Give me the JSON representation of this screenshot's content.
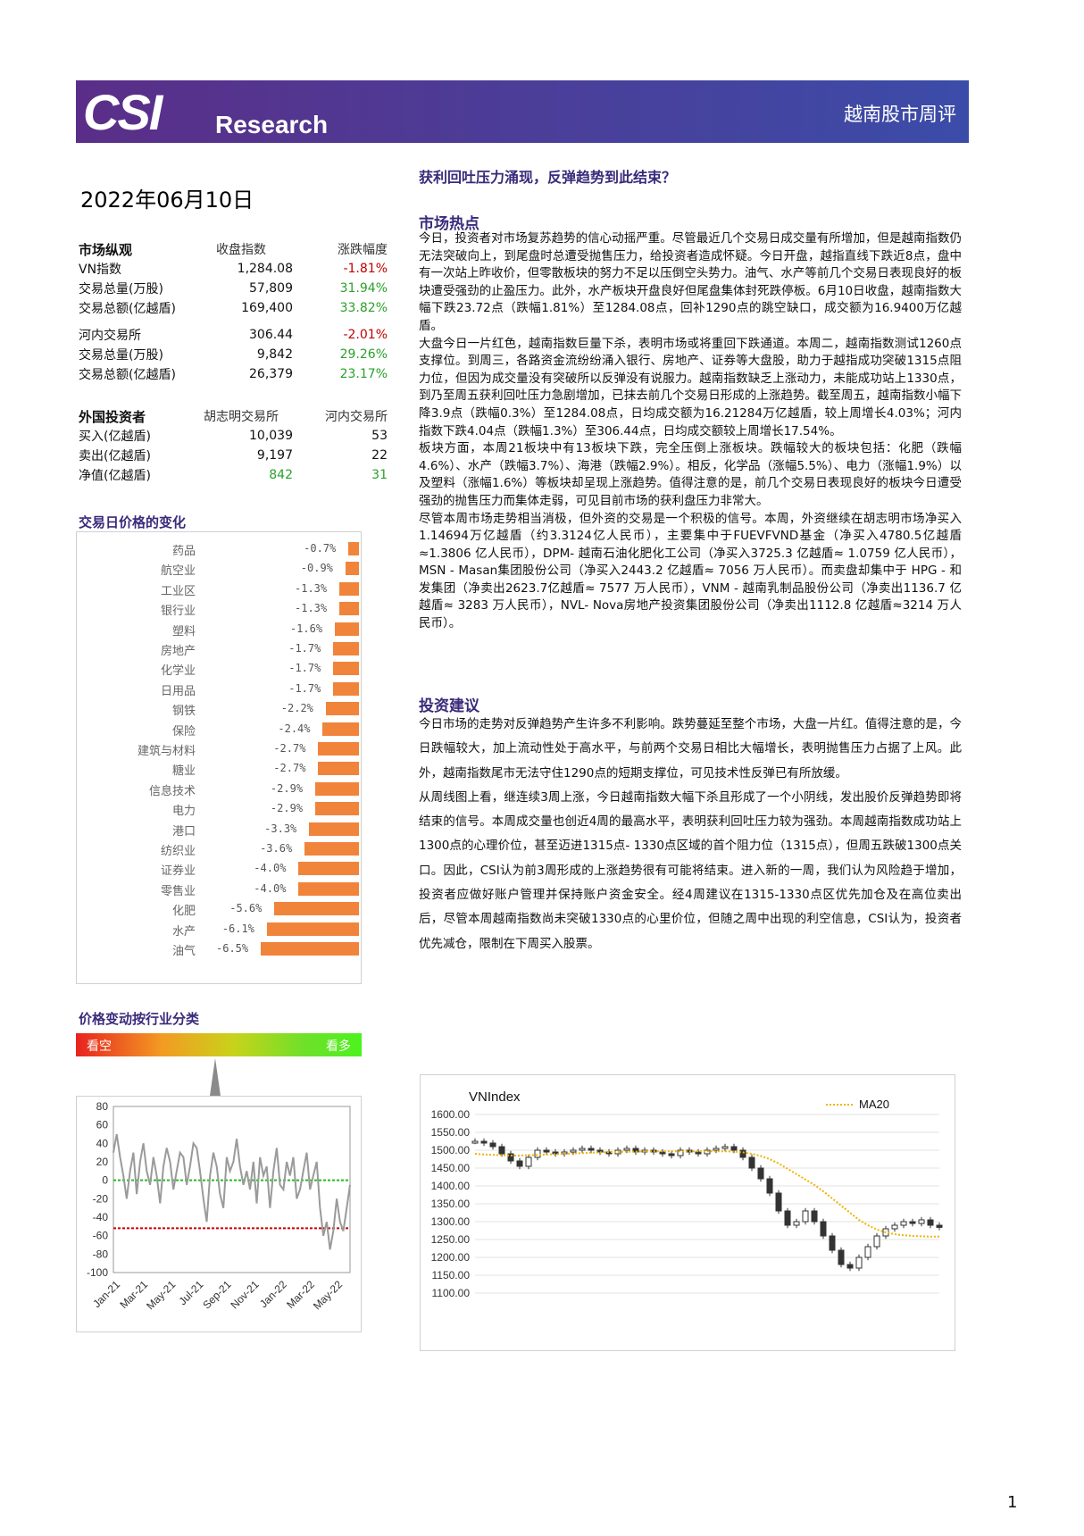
{
  "header": {
    "logo_mark": "CSI",
    "logo_word": "Research",
    "title": "越南股市周评",
    "brand_color": "#4b3a98"
  },
  "report_date": "2022年06月10日",
  "market_overview": {
    "heading": "市场纵观",
    "col1": "收盘指数",
    "col2": "涨跌幅度",
    "rows": [
      {
        "label": "VN指数",
        "v1": "1,284.08",
        "v2": "-1.81%"
      },
      {
        "label": "交易总量(万股)",
        "v1": "57,809",
        "v2": "31.94%"
      },
      {
        "label": "交易总额(亿越盾)",
        "v1": "169,400",
        "v2": "33.82%"
      },
      {
        "label": "河内交易所",
        "v1": "306.44",
        "v2": "-2.01%"
      },
      {
        "label": "交易总量(万股)",
        "v1": "9,842",
        "v2": "29.26%"
      },
      {
        "label": "交易总额(亿越盾)",
        "v1": "26,379",
        "v2": "23.17%"
      }
    ]
  },
  "foreign_investors": {
    "heading": "外国投资者",
    "col1": "胡志明交易所",
    "col2": "河内交易所",
    "rows": [
      {
        "label": "买入(亿越盾)",
        "v1": "10,039",
        "v2": "53"
      },
      {
        "label": "卖出(亿越盾)",
        "v1": "9,197",
        "v2": "22"
      },
      {
        "label": "净值(亿越盾)",
        "v1": "842",
        "v2": "31"
      }
    ]
  },
  "sector_chart": {
    "heading": "交易日价格的变化",
    "bar_color": "#f0843a",
    "items": [
      {
        "name": "药品",
        "label": "-0.7%",
        "value": -0.7
      },
      {
        "name": "航空业",
        "label": "-0.9%",
        "value": -0.9
      },
      {
        "name": "工业区",
        "label": "-1.3%",
        "value": -1.3
      },
      {
        "name": "银行业",
        "label": "-1.3%",
        "value": -1.3
      },
      {
        "name": "塑料",
        "label": "-1.6%",
        "value": -1.6
      },
      {
        "name": "房地产",
        "label": "-1.7%",
        "value": -1.7
      },
      {
        "name": "化学业",
        "label": "-1.7%",
        "value": -1.7
      },
      {
        "name": "日用品",
        "label": "-1.7%",
        "value": -1.7
      },
      {
        "name": "钢铁",
        "label": "-2.2%",
        "value": -2.2
      },
      {
        "name": "保险",
        "label": "-2.4%",
        "value": -2.4
      },
      {
        "name": "建筑与材料",
        "label": "-2.7%",
        "value": -2.7
      },
      {
        "name": "糖业",
        "label": "-2.7%",
        "value": -2.7
      },
      {
        "name": "信息技术",
        "label": "-2.9%",
        "value": -2.9
      },
      {
        "name": "电力",
        "label": "-2.9%",
        "value": -2.9
      },
      {
        "name": "港口",
        "label": "-3.3%",
        "value": -3.3
      },
      {
        "name": "纺织业",
        "label": "-3.6%",
        "value": -3.6
      },
      {
        "name": "证券业",
        "label": "-4.0%",
        "value": -4.0
      },
      {
        "name": "零售业",
        "label": "-4.0%",
        "value": -4.0
      },
      {
        "name": "化肥",
        "label": "-5.6%",
        "value": -5.6
      },
      {
        "name": "水产",
        "label": "-6.1%",
        "value": -6.1
      },
      {
        "name": "油气",
        "label": "-6.5%",
        "value": -6.5
      }
    ]
  },
  "sentiment": {
    "heading": "价格变动按行业分类",
    "bear": "看空",
    "bull": "看多"
  },
  "chart_data": [
    {
      "type": "line",
      "title": "",
      "ylim": [
        -100,
        80
      ],
      "yticks": [
        "80",
        "60",
        "40",
        "20",
        "0",
        "-20",
        "-40",
        "-60",
        "-80",
        "-100"
      ],
      "xticks": [
        "Jan-21",
        "Mar-21",
        "May-21",
        "Jul-21",
        "Sep-21",
        "Nov-21",
        "Jan-22",
        "Mar-22",
        "May-22"
      ],
      "reference_lines": [
        {
          "value": 0,
          "color": "#22bb22"
        },
        {
          "value": -52,
          "color": "#cc0000"
        }
      ],
      "series": [
        {
          "values": [
            30,
            50,
            25,
            5,
            -20,
            10,
            30,
            -15,
            20,
            40,
            10,
            -5,
            25,
            5,
            -25,
            15,
            35,
            20,
            -10,
            10,
            30,
            25,
            -5,
            15,
            40,
            35,
            10,
            -20,
            -45,
            5,
            30,
            15,
            -15,
            -30,
            25,
            10,
            20,
            45,
            15,
            -5,
            10,
            -10,
            20,
            -25,
            25,
            5,
            15,
            -30,
            10,
            35,
            -5,
            -10,
            20,
            5,
            25,
            -20,
            -10,
            10,
            30,
            -10,
            5,
            20,
            -30,
            -60,
            -45,
            -75,
            -55,
            -20,
            -45,
            -55,
            -30,
            -5
          ]
        }
      ]
    },
    {
      "type": "line",
      "title": "VNIndex",
      "legend": [
        "MA20"
      ],
      "ylim": [
        1100,
        1600
      ],
      "yticks": [
        "1600.00",
        "1550.00",
        "1500.00",
        "1450.00",
        "1400.00",
        "1350.00",
        "1300.00",
        "1250.00",
        "1200.00",
        "1150.00",
        "1100.00"
      ],
      "series": [
        {
          "name": "VNIndex",
          "values": [
            1525,
            1520,
            1510,
            1490,
            1470,
            1455,
            1480,
            1500,
            1495,
            1490,
            1495,
            1500,
            1505,
            1500,
            1495,
            1490,
            1500,
            1505,
            1495,
            1500,
            1495,
            1490,
            1485,
            1500,
            1495,
            1490,
            1500,
            1505,
            1510,
            1500,
            1480,
            1450,
            1420,
            1380,
            1330,
            1290,
            1300,
            1330,
            1300,
            1260,
            1220,
            1180,
            1170,
            1200,
            1230,
            1260,
            1280,
            1290,
            1300,
            1295,
            1305,
            1290,
            1284
          ]
        },
        {
          "name": "MA20",
          "values": [
            1490,
            1488,
            1487,
            1486,
            1485,
            1485,
            1486,
            1487,
            1488,
            1489,
            1490,
            1491,
            1492,
            1493,
            1494,
            1495,
            1495,
            1496,
            1496,
            1497,
            1497,
            1497,
            1497,
            1497,
            1497,
            1497,
            1497,
            1497,
            1497,
            1496,
            1494,
            1490,
            1484,
            1475,
            1463,
            1448,
            1433,
            1418,
            1403,
            1385,
            1365,
            1345,
            1325,
            1305,
            1290,
            1278,
            1270,
            1265,
            1262,
            1260,
            1259,
            1258,
            1258
          ]
        }
      ]
    }
  ],
  "article": {
    "headline": "获利回吐压力涌现，反弹趋势到此结束？",
    "hot_heading": "市场热点",
    "hot_paragraphs": [
      "今日，投资者对市场复苏趋势的信心动摇严重。尽管最近几个交易日成交量有所增加，但是越南指数仍无法突破向上，到尾盘时总遭受抛售压力，给投资者造成怀疑。今日开盘，越指直线下跌近8点，盘中有一次站上昨收价，但零散板块的努力不足以压倒空头势力。油气、水产等前几个交易日表现良好的板块遭受强劲的止盈压力。此外，水产板块开盘良好但尾盘集体封死跌停板。6月10日收盘，越南指数大幅下跌23.72点（跌幅1.81%）至1284.08点，回补1290点的跳空缺口，成交额为16.9400万亿越盾。",
      "大盘今日一片红色，越南指数巨量下杀，表明市场或将重回下跌通道。本周二，越南指数测试1260点支撑位。到周三，各路资金流纷纷涌入银行、房地产、证券等大盘股，助力于越指成功突破1315点阻力位，但因为成交量没有突破所以反弹没有说服力。越南指数缺乏上涨动力，未能成功站上1330点，到乃至周五获利回吐压力急剧增加，已抹去前几个交易日形成的上涨趋势。截至周五，越南指数小幅下降3.9点（跌幅0.3%）至1284.08点，日均成交额为16.21284万亿越盾，较上周增长4.03%；河内指数下跌4.04点（跌幅1.3%）至306.44点，日均成交额较上周增长17.54%。",
      "板块方面，本周21板块中有13板块下跌，完全压倒上涨板块。跌幅较大的板块包括：化肥（跌幅4.6%）、水产（跌幅3.7%）、海港（跌幅2.9%）。相反，化学品（涨幅5.5%）、电力（涨幅1.9%）以及塑料（涨幅1.6%）等板块却呈现上涨趋势。值得注意的是，前几个交易日表现良好的板块今日遭受强劲的抛售压力而集体走弱，可见目前市场的获利盘压力非常大。",
      "尽管本周市场走势相当消极，但外资的交易是一个积极的信号。本周，外资继续在胡志明市场净买入1.14694万亿越盾（约3.3124亿人民币），主要集中于FUEVFVND基金（净买入4780.5亿越盾≈1.3806 亿人民币），DPM- 越南石油化肥化工公司（净买入3725.3 亿越盾≈ 1.0759 亿人民币），MSN - Masan集团股份公司（净买入2443.2 亿越盾≈ 7056 万人民币）。而卖盘却集中于 HPG - 和发集团（净卖出2623.7亿越盾≈ 7577 万人民币），VNM - 越南乳制品股份公司（净卖出1136.7 亿越盾≈ 3283 万人民币），NVL- Nova房地产投资集团股份公司（净卖出1112.8 亿越盾≈3214 万人民币）。"
    ],
    "advice_heading": "投资建议",
    "advice_paragraphs": [
      "今日市场的走势对反弹趋势产生许多不利影响。跌势蔓延至整个市场，大盘一片红。值得注意的是，今日跌幅较大，加上流动性处于高水平，与前两个交易日相比大幅增长，表明抛售压力占据了上风。此外，越南指数尾市无法守住1290点的短期支撑位，可见技术性反弹已有所放缓。",
      "从周线图上看，继连续3周上涨，今日越南指数大幅下杀且形成了一个小阴线，发出股价反弹趋势即将结束的信号。本周成交量也创近4周的最高水平，表明获利回吐压力较为强劲。本周越南指数成功站上1300点的心理价位，甚至迈进1315点- 1330点区域的首个阻力位（1315点），但周五跌破1300点关口。因此，CSI认为前3周形成的上涨趋势很有可能将结束。进入新的一周，我们认为风险趋于增加，投资者应做好账户管理并保持账户资金安全。经4周建议在1315-1330点区优先加仓及在高位卖出后，尽管本周越南指数尚未突破1330点的心里价位，但随之周中出现的利空信息，CSI认为，投资者优先减仓，限制在下周买入股票。"
    ]
  },
  "page_number": "1"
}
